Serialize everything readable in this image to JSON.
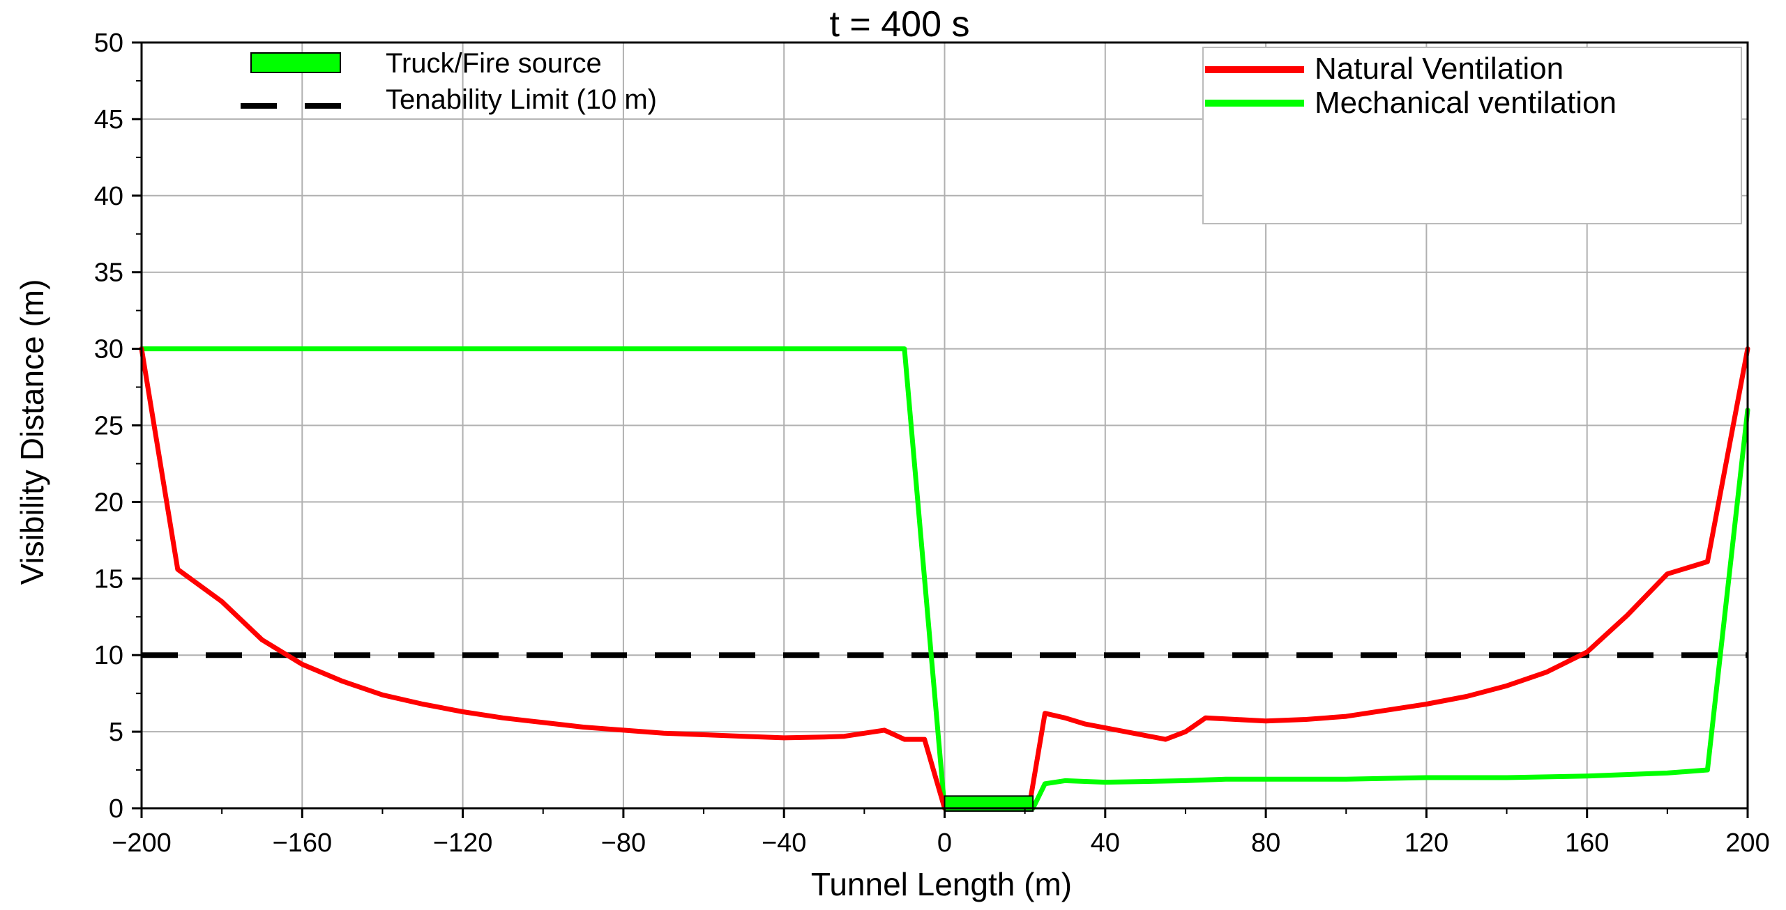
{
  "chart_data": {
    "type": "line",
    "title": "t = 400 s",
    "xlabel": "Tunnel Length (m)",
    "ylabel": "Visibility Distance (m)",
    "xlim": [
      -200,
      200
    ],
    "ylim": [
      0,
      50
    ],
    "x_ticks": [
      -200,
      -160,
      -120,
      -80,
      -40,
      0,
      40,
      80,
      120,
      160,
      200
    ],
    "x_tick_labels": [
      "−200",
      "−160",
      "−120",
      "−80",
      "−40",
      "0",
      "40",
      "80",
      "120",
      "160",
      "200"
    ],
    "y_ticks": [
      0,
      5,
      10,
      15,
      20,
      25,
      30,
      35,
      40,
      45,
      50
    ],
    "y_tick_labels": [
      "0",
      "5",
      "10",
      "15",
      "20",
      "25",
      "30",
      "35",
      "40",
      "45",
      "50"
    ],
    "grid": true,
    "legend_left": {
      "placement": "top-left",
      "entries": [
        {
          "label": "Truck/Fire source",
          "style": "box",
          "color": "#00ff00"
        },
        {
          "label": "Tenability Limit  (10 m)",
          "style": "dashed",
          "color": "#000000"
        }
      ]
    },
    "legend_right": {
      "placement": "top-right",
      "entries": [
        {
          "label": "Natural Ventilation",
          "color": "#ff0000"
        },
        {
          "label": "Mechanical ventilation",
          "color": "#00ff00"
        }
      ]
    },
    "fire_source": {
      "x_start": 0,
      "x_end": 22,
      "height": 0.8,
      "color": "#00ff00"
    },
    "tenability_limit": 10,
    "series": [
      {
        "name": "Natural Ventilation",
        "color": "#ff0000",
        "points": [
          [
            -200,
            30
          ],
          [
            -191,
            15.6
          ],
          [
            -180,
            13.5
          ],
          [
            -170,
            11
          ],
          [
            -160,
            9.4
          ],
          [
            -150,
            8.3
          ],
          [
            -140,
            7.4
          ],
          [
            -130,
            6.8
          ],
          [
            -120,
            6.3
          ],
          [
            -110,
            5.9
          ],
          [
            -100,
            5.6
          ],
          [
            -90,
            5.3
          ],
          [
            -80,
            5.1
          ],
          [
            -70,
            4.9
          ],
          [
            -60,
            4.8
          ],
          [
            -50,
            4.7
          ],
          [
            -40,
            4.6
          ],
          [
            -30,
            4.65
          ],
          [
            -25,
            4.7
          ],
          [
            -15,
            5.1
          ],
          [
            -10,
            4.5
          ],
          [
            -5,
            4.5
          ],
          [
            0,
            0
          ],
          [
            21,
            0
          ],
          [
            25,
            6.2
          ],
          [
            30,
            5.9
          ],
          [
            35,
            5.5
          ],
          [
            45,
            5.0
          ],
          [
            55,
            4.5
          ],
          [
            60,
            5.0
          ],
          [
            65,
            5.9
          ],
          [
            80,
            5.7
          ],
          [
            90,
            5.8
          ],
          [
            100,
            6.0
          ],
          [
            110,
            6.4
          ],
          [
            120,
            6.8
          ],
          [
            130,
            7.3
          ],
          [
            140,
            8.0
          ],
          [
            150,
            8.9
          ],
          [
            160,
            10.2
          ],
          [
            170,
            12.6
          ],
          [
            180,
            15.3
          ],
          [
            190,
            16.1
          ],
          [
            200,
            30
          ]
        ]
      },
      {
        "name": "Mechanical ventilation",
        "color": "#00ff00",
        "points": [
          [
            -200,
            30
          ],
          [
            -10,
            30
          ],
          [
            0,
            0
          ],
          [
            22,
            0
          ],
          [
            25,
            1.6
          ],
          [
            30,
            1.8
          ],
          [
            40,
            1.7
          ],
          [
            60,
            1.8
          ],
          [
            70,
            1.9
          ],
          [
            100,
            1.9
          ],
          [
            120,
            2.0
          ],
          [
            140,
            2.0
          ],
          [
            160,
            2.1
          ],
          [
            180,
            2.3
          ],
          [
            190,
            2.5
          ],
          [
            200,
            26
          ]
        ]
      }
    ]
  }
}
